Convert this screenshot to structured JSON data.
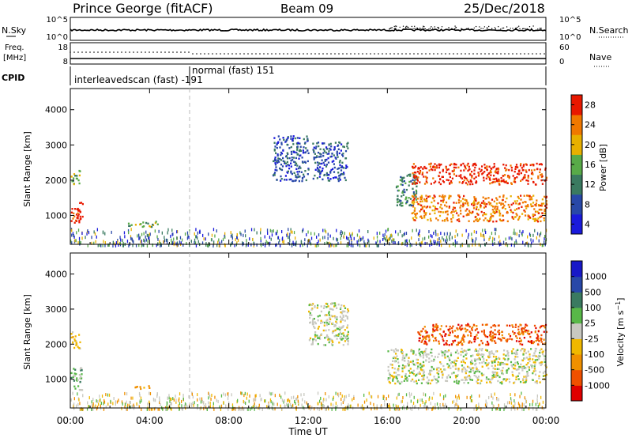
{
  "header": {
    "station": "Prince George (fitACF)",
    "beam": "Beam 09",
    "date": "25/Dec/2018"
  },
  "noise_panel": {
    "left_label": "N.Sky",
    "left_ticks": [
      "10^5",
      "10^0"
    ],
    "right_label": "N.Search",
    "right_ticks": [
      "10^5",
      "10^0"
    ]
  },
  "freq_panel": {
    "left_label_1": "Freq.",
    "left_label_2": "[MHz]",
    "left_ticks": [
      "18",
      "8"
    ],
    "right_label": "Nave",
    "right_ticks": [
      "60",
      "0"
    ]
  },
  "cpid_panel": {
    "label": "CPID",
    "modes": [
      {
        "text": "interleavedscan (fast) -191",
        "start_hour": 0
      },
      {
        "text": "normal (fast) 151",
        "start_hour": 6
      }
    ]
  },
  "colors": {
    "power": [
      "#1a1adc",
      "#2848a8",
      "#3a7a60",
      "#58aa48",
      "#e8b000",
      "#f07800",
      "#e81800"
    ],
    "velocity": [
      "#e00000",
      "#f05000",
      "#f09000",
      "#f0b800",
      "#c8c8c0",
      "#58b848",
      "#3a7a60",
      "#2848a8",
      "#1818c8"
    ]
  },
  "chart_data": [
    {
      "type": "heatmap",
      "quantity": "Power",
      "ylabel": "Slant Range [km]",
      "colorbar_label": "Power [dB]",
      "colorbar_ticks": [
        "4",
        "8",
        "12",
        "16",
        "20",
        "24",
        "28"
      ],
      "colorbar_range": [
        0,
        32
      ],
      "ylim": [
        180,
        4600
      ],
      "yticks": [
        "1000",
        "2000",
        "3000",
        "4000"
      ],
      "xlim": [
        0,
        24
      ],
      "echo_regions": [
        {
          "t0": 0.0,
          "t1": 0.6,
          "r0": 800,
          "r1": 1450,
          "level": 6
        },
        {
          "t0": 0.0,
          "t1": 0.5,
          "r0": 1900,
          "r1": 2300,
          "level": 3
        },
        {
          "t0": 2.8,
          "t1": 4.4,
          "r0": 700,
          "r1": 850,
          "level": 3
        },
        {
          "t0": 10.2,
          "t1": 12.0,
          "r0": 2000,
          "r1": 3300,
          "level": 1
        },
        {
          "t0": 12.2,
          "t1": 14.0,
          "r0": 2000,
          "r1": 3100,
          "level": 1
        },
        {
          "t0": 16.4,
          "t1": 17.5,
          "r0": 1300,
          "r1": 2200,
          "level": 2
        },
        {
          "t0": 17.2,
          "t1": 24.0,
          "r0": 1900,
          "r1": 2500,
          "level": 6
        },
        {
          "t0": 17.2,
          "t1": 24.0,
          "r0": 850,
          "r1": 1600,
          "level": 5
        },
        {
          "t0": 0.0,
          "t1": 24.0,
          "r0": 180,
          "r1": 650,
          "level": 1
        }
      ]
    },
    {
      "type": "heatmap",
      "quantity": "Velocity",
      "ylabel": "Slant Range [km]",
      "colorbar_label": "Velocity [m s^-1]",
      "colorbar_ticks": [
        "-1000",
        "-500",
        "-100",
        "-25",
        "25",
        "100",
        "500",
        "1000"
      ],
      "ylim": [
        180,
        4600
      ],
      "yticks": [
        "1000",
        "2000",
        "3000",
        "4000"
      ],
      "xlim": [
        0,
        24
      ],
      "echo_regions": [
        {
          "t0": 0.0,
          "t1": 0.6,
          "r0": 700,
          "r1": 1400,
          "level": 5
        },
        {
          "t0": 0.0,
          "t1": 0.5,
          "r0": 1900,
          "r1": 2400,
          "level": 3
        },
        {
          "t0": 3.2,
          "t1": 4.2,
          "r0": 750,
          "r1": 850,
          "level": 2
        },
        {
          "t0": 12.0,
          "t1": 14.0,
          "r0": 2000,
          "r1": 3200,
          "level": 4
        },
        {
          "t0": 16.0,
          "t1": 24.0,
          "r0": 900,
          "r1": 1900,
          "level": 4
        },
        {
          "t0": 17.5,
          "t1": 24.0,
          "r0": 2000,
          "r1": 2600,
          "level": 1
        },
        {
          "t0": 0.0,
          "t1": 24.0,
          "r0": 180,
          "r1": 650,
          "level": 3
        }
      ]
    }
  ],
  "xaxis": {
    "title": "Time UT",
    "ticks": [
      "00:00",
      "04:00",
      "08:00",
      "12:00",
      "16:00",
      "20:00",
      "00:00"
    ]
  }
}
